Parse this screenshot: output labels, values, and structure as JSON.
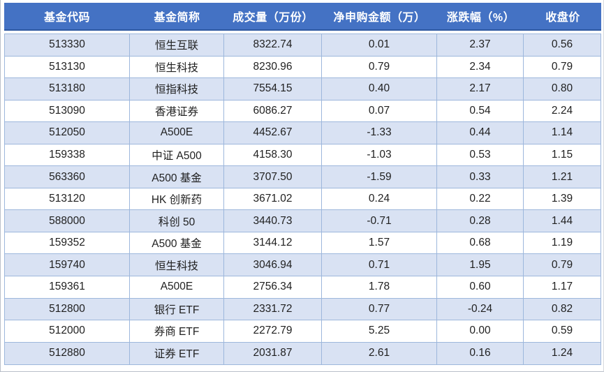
{
  "chart_data": {
    "type": "table",
    "columns": [
      "基金代码",
      "基金简称",
      "成交量（万份）",
      "净申购金额（万）",
      "涨跌幅（%）",
      "收盘价"
    ],
    "column_keys": [
      "fund_code",
      "fund_name",
      "volume_10k_units",
      "net_subscription_10k",
      "change_pct",
      "close_price"
    ],
    "rows": [
      [
        "513330",
        "恒生互联",
        "8322.74",
        "0.01",
        "2.37",
        "0.56"
      ],
      [
        "513130",
        "恒生科技",
        "8230.96",
        "0.79",
        "2.34",
        "0.79"
      ],
      [
        "513180",
        "恒指科技",
        "7554.15",
        "0.40",
        "2.17",
        "0.80"
      ],
      [
        "513090",
        "香港证券",
        "6086.27",
        "0.07",
        "0.54",
        "2.24"
      ],
      [
        "512050",
        "A500E",
        "4452.67",
        "-1.33",
        "0.44",
        "1.14"
      ],
      [
        "159338",
        "中证 A500",
        "4158.30",
        "-1.03",
        "0.53",
        "1.15"
      ],
      [
        "563360",
        "A500 基金",
        "3707.50",
        "-1.59",
        "0.33",
        "1.21"
      ],
      [
        "513120",
        "HK 创新药",
        "3671.02",
        "0.24",
        "0.22",
        "1.39"
      ],
      [
        "588000",
        "科创 50",
        "3440.73",
        "-0.71",
        "0.28",
        "1.44"
      ],
      [
        "159352",
        "A500 基金",
        "3144.12",
        "1.57",
        "0.68",
        "1.19"
      ],
      [
        "159740",
        "恒生科技",
        "3046.94",
        "0.71",
        "1.95",
        "0.79"
      ],
      [
        "159361",
        "A500E",
        "2756.34",
        "1.78",
        "0.60",
        "1.17"
      ],
      [
        "512800",
        "银行 ETF",
        "2331.72",
        "0.77",
        "-0.24",
        "0.82"
      ],
      [
        "512000",
        "券商 ETF",
        "2272.79",
        "5.25",
        "0.00",
        "0.59"
      ],
      [
        "512880",
        "证券 ETF",
        "2031.87",
        "2.61",
        "0.16",
        "1.24"
      ]
    ],
    "colors": {
      "header_bg": "#4472C4",
      "header_text": "#FFFFFF",
      "band_row_bg": "#D9E2F3",
      "grid_border": "#9DB7DC",
      "body_text": "#1F1F1F"
    }
  }
}
